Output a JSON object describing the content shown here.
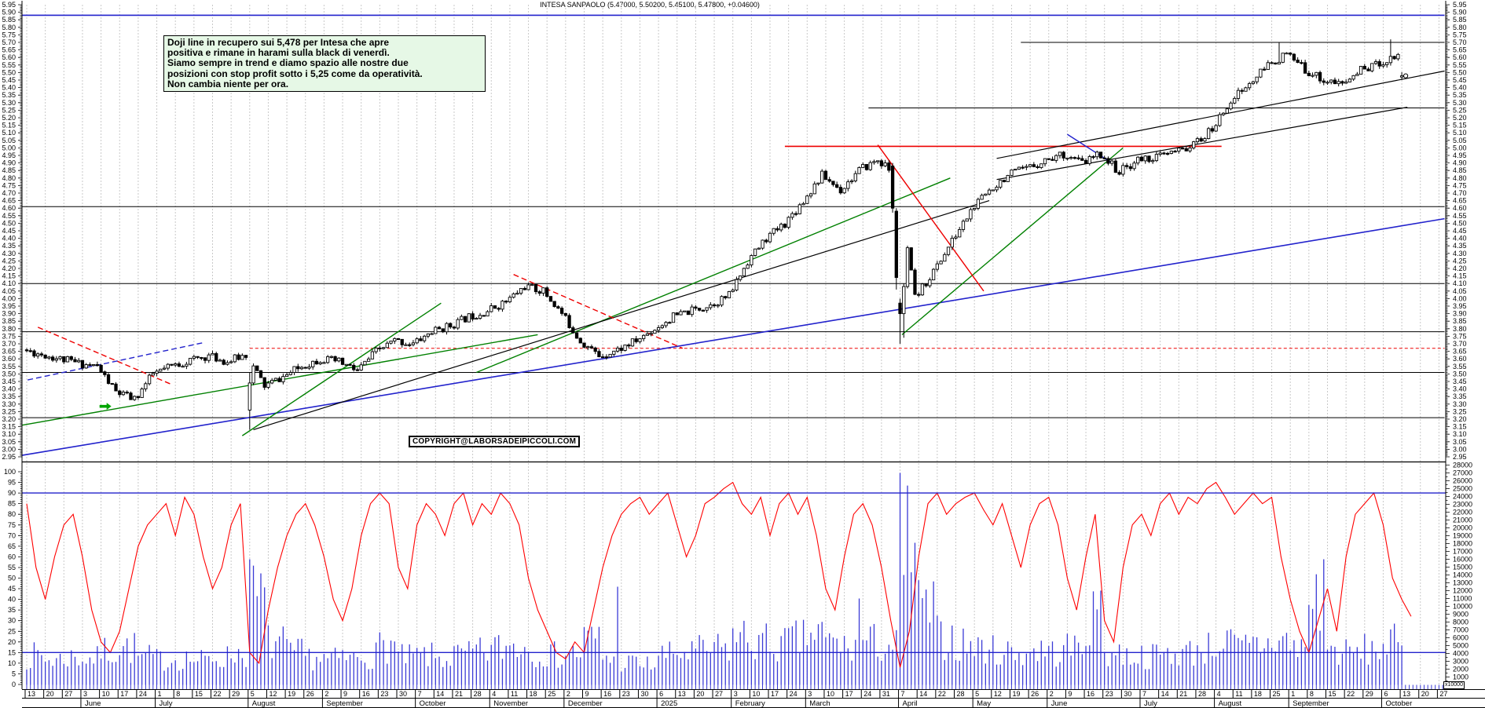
{
  "title": "INTESA SANPAOLO (5.47000, 5.50200, 5.45100, 5.47800, +0.04600)",
  "annotation": {
    "lines": [
      "Doji line in recupero sui 5,478 per Intesa che apre",
      "positiva e rimane in harami sulla black di venerdì.",
      "Siamo sempre in trend e diamo spazio alle nostre due",
      "posizioni con stop profit sotto i 5,25 come da operatività.",
      "Non cambia niente per ora."
    ]
  },
  "copyright_label": "COPYRIGHT@LABORSADEIPICCOLI.COM",
  "vol_unit_label": "x10000",
  "chart_data": {
    "type": "candlestick",
    "security": "INTESA SANPAOLO",
    "quote": {
      "open": 5.47,
      "high": 5.502,
      "low": 5.451,
      "close": 5.478,
      "change": "+0.04600"
    },
    "price_axis": {
      "min": 2.95,
      "max": 5.95,
      "step": 0.05,
      "sides": "both"
    },
    "oscillator_axis": {
      "min": 0,
      "max": 100,
      "step": 5,
      "ref_lines": [
        90,
        15
      ]
    },
    "volume_axis": {
      "min": 0,
      "max": 28000,
      "step": 1000
    },
    "colors": {
      "up_candle": "#ffffff",
      "down_candle": "#000000",
      "outline": "#000000",
      "volume": "#3a3ad6",
      "oscillator": "#ff0000",
      "grid": "#c9c9c9",
      "blue_line": "#2222cc",
      "green_line": "#008000",
      "red_line": "#ee0000"
    },
    "x_axis": {
      "lead_days": [
        13,
        20,
        27
      ],
      "months": [
        {
          "label": "June",
          "days": [
            3,
            10,
            17,
            24
          ]
        },
        {
          "label": "July",
          "days": [
            1,
            8,
            15,
            22,
            29
          ]
        },
        {
          "label": "August",
          "days": [
            5,
            12,
            19,
            26
          ]
        },
        {
          "label": "September",
          "days": [
            2,
            9,
            16,
            23,
            30
          ]
        },
        {
          "label": "October",
          "days": [
            7,
            14,
            21,
            28
          ]
        },
        {
          "label": "November",
          "days": [
            4,
            11,
            18,
            25
          ]
        },
        {
          "label": "December",
          "days": [
            2,
            9,
            16,
            23,
            30
          ]
        },
        {
          "label": "2025",
          "days": [
            6,
            13,
            20,
            27
          ]
        },
        {
          "label": "February",
          "days": [
            3,
            10,
            17,
            24
          ]
        },
        {
          "label": "March",
          "days": [
            3,
            10,
            17,
            24,
            31
          ]
        },
        {
          "label": "April",
          "days": [
            7,
            14,
            22,
            28
          ]
        },
        {
          "label": "May",
          "days": [
            5,
            12,
            19,
            26
          ]
        },
        {
          "label": "June",
          "days": [
            2,
            9,
            16,
            23,
            30
          ]
        },
        {
          "label": "July",
          "days": [
            7,
            14,
            21,
            28
          ]
        },
        {
          "label": "August",
          "days": [
            4,
            11,
            18,
            25
          ]
        },
        {
          "label": "September",
          "days": [
            1,
            8,
            15,
            22,
            29
          ]
        },
        {
          "label": "October",
          "days": [
            6,
            13,
            20,
            27
          ]
        }
      ]
    },
    "weekly_closes": [
      3.63,
      3.6,
      3.57,
      3.55,
      3.38,
      3.33,
      3.5,
      3.55,
      3.59,
      3.62,
      3.58,
      3.63,
      3.42,
      3.48,
      3.55,
      3.6,
      3.58,
      3.52,
      3.65,
      3.72,
      3.7,
      3.78,
      3.82,
      3.88,
      3.92,
      3.98,
      4.08,
      4.05,
      3.9,
      3.72,
      3.62,
      3.66,
      3.72,
      3.8,
      3.88,
      3.92,
      3.96,
      4.02,
      4.25,
      4.4,
      4.5,
      4.65,
      4.82,
      4.72,
      4.85,
      4.92,
      4.82,
      4.0,
      4.18,
      4.38,
      4.58,
      4.72,
      4.82,
      4.86,
      4.92,
      4.96,
      4.9,
      4.96,
      4.84,
      4.92,
      4.94,
      4.97,
      5.02,
      5.12,
      5.32,
      5.42,
      5.55,
      5.62,
      5.52,
      5.45,
      5.42,
      5.52,
      5.56,
      5.62,
      5.478
    ],
    "weekly_volume": [
      5500,
      4800,
      5200,
      5000,
      6500,
      7000,
      5200,
      4800,
      5000,
      4600,
      5200,
      6000,
      16000,
      8000,
      6000,
      5200,
      4800,
      5000,
      5600,
      7500,
      5200,
      5400,
      5000,
      5600,
      6200,
      7000,
      7600,
      6400,
      5600,
      6000,
      8500,
      5200,
      4200,
      3800,
      5600,
      6000,
      6400,
      6800,
      9000,
      8000,
      7600,
      8400,
      9500,
      8000,
      7000,
      8000,
      7400,
      27000,
      14000,
      9000,
      7600,
      7000,
      6400,
      6000,
      6600,
      6200,
      7000,
      12000,
      6000,
      5600,
      5400,
      5800,
      6200,
      7000,
      8000,
      7000,
      7600,
      8400,
      7000,
      16000,
      6400,
      6000,
      6600,
      7800,
      5200
    ],
    "oscillator": [
      85,
      55,
      40,
      60,
      75,
      80,
      60,
      35,
      20,
      15,
      25,
      45,
      65,
      75,
      80,
      85,
      70,
      88,
      80,
      60,
      45,
      55,
      75,
      85,
      15,
      10,
      35,
      55,
      70,
      80,
      85,
      75,
      60,
      40,
      30,
      45,
      70,
      85,
      90,
      85,
      55,
      45,
      75,
      85,
      80,
      70,
      85,
      90,
      75,
      85,
      80,
      90,
      85,
      75,
      50,
      35,
      25,
      15,
      12,
      20,
      15,
      35,
      55,
      70,
      80,
      85,
      88,
      80,
      85,
      90,
      75,
      60,
      70,
      85,
      88,
      92,
      95,
      85,
      80,
      88,
      70,
      85,
      90,
      80,
      88,
      70,
      45,
      35,
      60,
      80,
      85,
      75,
      55,
      30,
      8,
      25,
      60,
      85,
      90,
      80,
      85,
      88,
      90,
      82,
      75,
      85,
      70,
      55,
      75,
      85,
      88,
      75,
      50,
      35,
      60,
      80,
      30,
      20,
      55,
      75,
      80,
      70,
      85,
      90,
      80,
      88,
      85,
      92,
      95,
      88,
      80,
      85,
      90,
      85,
      88,
      60,
      40,
      25,
      15,
      30,
      45,
      25,
      60,
      80,
      85,
      90,
      75,
      50,
      40,
      32
    ],
    "last_bar": {
      "open": 5.47,
      "high": 5.502,
      "low": 5.451,
      "close": 5.478
    },
    "events": {
      "crash1_week": 12,
      "crash1_low": 3.13,
      "crash2_week": 47,
      "crash2_low": 3.7,
      "volume_spikes": [
        [
          12,
          0,
          16000
        ],
        [
          47,
          0,
          27000
        ],
        [
          47,
          1,
          14000
        ],
        [
          31,
          4,
          12500
        ],
        [
          44,
          4,
          11000
        ],
        [
          57,
          4,
          12000
        ],
        [
          69,
          4,
          16000
        ]
      ]
    },
    "horizontal_lines": [
      {
        "price": 5.88,
        "w1": -0.25,
        "w2": 76.3,
        "color": "#2222cc",
        "width": 1.6,
        "dash": ""
      },
      {
        "price": 5.7,
        "w1": 53.5,
        "w2": 76.3,
        "color": "#000000",
        "width": 1,
        "dash": ""
      },
      {
        "price": 5.265,
        "w1": 45.3,
        "w2": 76.3,
        "color": "#000000",
        "width": 1,
        "dash": ""
      },
      {
        "price": 4.61,
        "w1": -0.25,
        "w2": 76.3,
        "color": "#000000",
        "width": 1,
        "dash": ""
      },
      {
        "price": 4.1,
        "w1": -0.25,
        "w2": 76.3,
        "color": "#000000",
        "width": 1,
        "dash": ""
      },
      {
        "price": 3.78,
        "w1": -0.25,
        "w2": 76.3,
        "color": "#000000",
        "width": 1,
        "dash": ""
      },
      {
        "price": 3.51,
        "w1": -0.25,
        "w2": 76.3,
        "color": "#000000",
        "width": 1,
        "dash": ""
      },
      {
        "price": 3.21,
        "w1": -0.25,
        "w2": 76.3,
        "color": "#000000",
        "width": 1,
        "dash": ""
      },
      {
        "price": 5.01,
        "w1": 40.8,
        "w2": 64.3,
        "color": "#ee0000",
        "width": 1.6,
        "dash": ""
      },
      {
        "price": 3.67,
        "w1": 12.0,
        "w2": 76.3,
        "color": "#ee0000",
        "width": 1,
        "dash": "4,3"
      }
    ],
    "trend_lines": [
      {
        "w1": 0.6,
        "p1": 3.81,
        "w2": 7.8,
        "p2": 3.43,
        "color": "#ee0000",
        "width": 1.4,
        "dash": "7,4"
      },
      {
        "w1": 0.05,
        "p1": 3.46,
        "w2": 9.6,
        "p2": 3.71,
        "color": "#2222cc",
        "width": 1.4,
        "dash": "7,4"
      },
      {
        "w1": -0.25,
        "p1": 2.96,
        "w2": 76.3,
        "p2": 4.53,
        "color": "#2222cc",
        "width": 1.6,
        "dash": ""
      },
      {
        "w1": -0.25,
        "p1": 3.16,
        "w2": 27.5,
        "p2": 3.76,
        "color": "#008000",
        "width": 1.4,
        "dash": ""
      },
      {
        "w1": 11.6,
        "p1": 3.09,
        "w2": 22.3,
        "p2": 3.97,
        "color": "#008000",
        "width": 1.4,
        "dash": ""
      },
      {
        "w1": 24.2,
        "p1": 3.51,
        "w2": 49.7,
        "p2": 4.8,
        "color": "#008000",
        "width": 1.4,
        "dash": ""
      },
      {
        "w1": 47.1,
        "p1": 3.76,
        "w2": 59.0,
        "p2": 5.0,
        "color": "#008000",
        "width": 1.4,
        "dash": ""
      },
      {
        "w1": 12.2,
        "p1": 3.13,
        "w2": 51.8,
        "p2": 4.65,
        "color": "#000000",
        "width": 1.2,
        "dash": ""
      },
      {
        "w1": 52.2,
        "p1": 4.93,
        "w2": 76.3,
        "p2": 5.51,
        "color": "#000000",
        "width": 1.2,
        "dash": ""
      },
      {
        "w1": 52.2,
        "p1": 4.79,
        "w2": 74.3,
        "p2": 5.27,
        "color": "#000000",
        "width": 1.2,
        "dash": ""
      },
      {
        "w1": 26.2,
        "p1": 4.16,
        "w2": 35.3,
        "p2": 3.67,
        "color": "#ee0000",
        "width": 1.4,
        "dash": "7,4"
      },
      {
        "w1": 45.8,
        "p1": 5.02,
        "w2": 51.5,
        "p2": 4.05,
        "color": "#ee0000",
        "width": 1.4,
        "dash": ""
      },
      {
        "w1": 56.0,
        "p1": 5.09,
        "w2": 58.4,
        "p2": 4.9,
        "color": "#2222cc",
        "width": 1.4,
        "dash": ""
      }
    ],
    "marker_arrow": {
      "week": 4.3,
      "price": 3.285,
      "color": "#00a500"
    }
  }
}
